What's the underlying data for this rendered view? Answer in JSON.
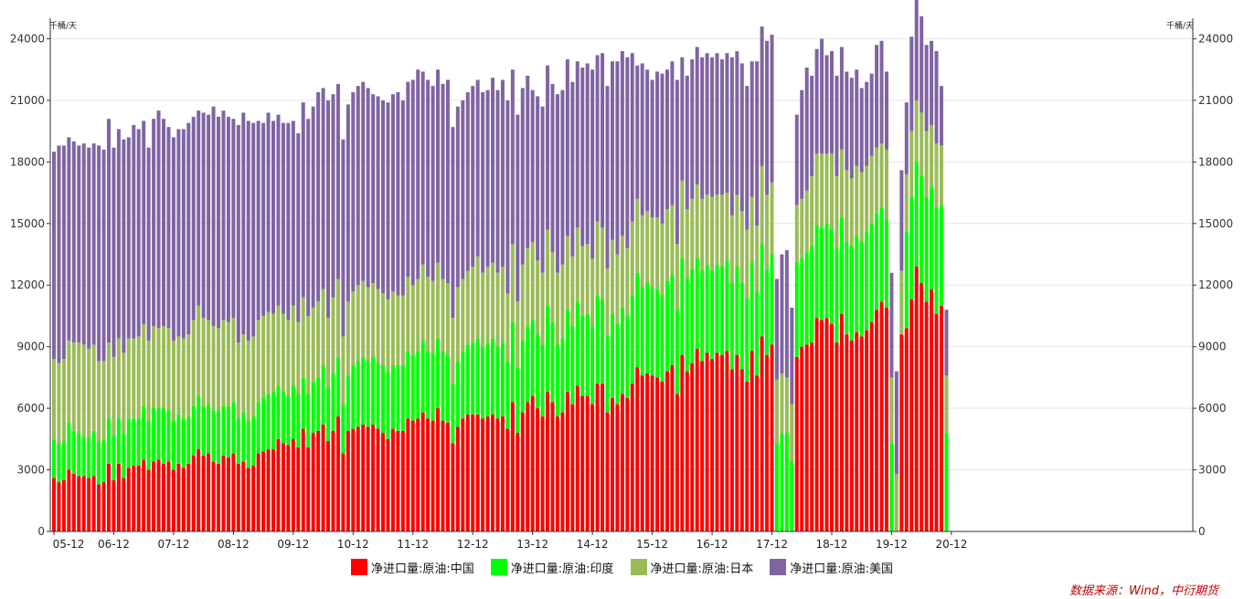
{
  "chart_data": {
    "type": "bar",
    "stacked": true,
    "title": "",
    "unit_left": "千桶/天",
    "unit_right": "千桶/天",
    "ylim": [
      0,
      25000
    ],
    "yticks": [
      0,
      3000,
      6000,
      9000,
      12000,
      15000,
      18000,
      21000,
      24000
    ],
    "xtick_labels": [
      "05-12",
      "06-12",
      "07-12",
      "08-12",
      "09-12",
      "10-12",
      "11-12",
      "12-12",
      "13-12",
      "14-12",
      "15-12",
      "16-12",
      "17-12",
      "18-12",
      "19-12",
      "20-12"
    ],
    "month_start": "2005-12",
    "legend_position": "bottom",
    "grid": true,
    "series": [
      {
        "name": "净进口量:原油:中国",
        "color": "#ff0000",
        "values": [
          2600,
          2400,
          2500,
          3000,
          2800,
          2700,
          2700,
          2600,
          2700,
          2300,
          2400,
          3300,
          2500,
          3300,
          2600,
          3100,
          3200,
          3200,
          3500,
          3000,
          3400,
          3500,
          3300,
          3400,
          3000,
          3300,
          3100,
          3300,
          3700,
          4000,
          3700,
          3800,
          3400,
          3300,
          3700,
          3600,
          3800,
          3300,
          3400,
          3100,
          3200,
          3800,
          3900,
          4000,
          4000,
          4500,
          4300,
          4200,
          4500,
          4100,
          5000,
          4100,
          4800,
          4900,
          5200,
          4400,
          4900,
          5600,
          3800,
          4900,
          5000,
          5100,
          5200,
          5100,
          5200,
          5000,
          4800,
          4500,
          5000,
          4900,
          4900,
          5500,
          5400,
          5500,
          5800,
          5500,
          5400,
          6000,
          5400,
          5300,
          4300,
          5100,
          5500,
          5700,
          5700,
          5700,
          5500,
          5600,
          5700,
          5500,
          5600,
          5000,
          6300,
          4800,
          5800,
          6300,
          6600,
          6000,
          5600,
          6800,
          6300,
          5600,
          5800,
          6800,
          6200,
          7100,
          6600,
          6600,
          6200,
          7200,
          7200,
          5800,
          6500,
          6200,
          6700,
          6500,
          7200,
          8000,
          7600,
          7700,
          7600,
          7500,
          7300,
          7800,
          8100,
          6700,
          8600,
          7800,
          8200,
          8900,
          8300,
          8700,
          8400,
          8700,
          8600,
          8800,
          7900,
          8600,
          7900,
          7300,
          8800,
          7600,
          9500,
          8600,
          9100,
          0,
          0,
          0,
          0,
          8500,
          9000,
          9100,
          9200,
          10400,
          10300,
          10400,
          10100,
          9200,
          10600,
          9600,
          9300,
          9700,
          9500,
          9800,
          10200,
          10800,
          11200,
          10900,
          0,
          0,
          9600,
          9900,
          11300,
          12900,
          12100,
          11200,
          11800,
          10600,
          11000,
          0
        ]
      },
      {
        "name": "净进口量:原油:印度",
        "color": "#00ff00",
        "values": [
          1900,
          1900,
          1900,
          2300,
          2100,
          2100,
          1900,
          2000,
          2200,
          2100,
          2100,
          2200,
          2200,
          2200,
          2200,
          2400,
          2300,
          2300,
          2600,
          2400,
          2600,
          2500,
          2700,
          2500,
          2400,
          2400,
          2400,
          2300,
          2400,
          2600,
          2400,
          2400,
          2500,
          2600,
          2400,
          2500,
          2500,
          2200,
          2400,
          2300,
          2400,
          2500,
          2600,
          2700,
          2800,
          2600,
          2500,
          2400,
          2600,
          2600,
          2500,
          2600,
          2500,
          2600,
          2900,
          2600,
          2800,
          2900,
          2400,
          2700,
          3100,
          3200,
          3300,
          3200,
          3300,
          3200,
          3300,
          3300,
          3100,
          3200,
          3200,
          3300,
          3200,
          3300,
          3500,
          3300,
          3300,
          3400,
          3400,
          3300,
          2900,
          3200,
          3300,
          3400,
          3500,
          3700,
          3500,
          3600,
          3700,
          3500,
          3600,
          3300,
          3900,
          3200,
          3500,
          3700,
          3700,
          3600,
          3500,
          4200,
          3900,
          3500,
          3600,
          4000,
          3800,
          4100,
          3900,
          4000,
          3800,
          4300,
          4100,
          3700,
          4100,
          3900,
          4200,
          4000,
          4300,
          4600,
          4300,
          4400,
          4300,
          4300,
          4200,
          4400,
          4400,
          4100,
          4700,
          4500,
          4600,
          4400,
          4400,
          4300,
          4300,
          4300,
          4300,
          4400,
          4200,
          4300,
          4200,
          4100,
          4300,
          4100,
          4500,
          4200,
          4400,
          4300,
          4800,
          4800,
          3400,
          4600,
          4300,
          4500,
          4700,
          4500,
          4500,
          4600,
          4600,
          4600,
          4700,
          4500,
          4600,
          4700,
          4600,
          4800,
          4800,
          4700,
          4600,
          4300,
          4300,
          0,
          0,
          4700,
          5000,
          5100,
          5200,
          5100,
          5000,
          5200,
          4900,
          4800,
          4500,
          2800
        ]
      },
      {
        "name": "净进口量:原油:日本",
        "color": "#9bbb59",
        "values": [
          3900,
          3900,
          4000,
          4000,
          4300,
          4400,
          4500,
          4300,
          4200,
          3900,
          3800,
          3700,
          3800,
          3900,
          3900,
          3900,
          3900,
          4000,
          4000,
          3900,
          4000,
          3900,
          4000,
          4000,
          3900,
          3800,
          3900,
          4000,
          4200,
          4400,
          4300,
          4100,
          4100,
          4000,
          4200,
          4100,
          4100,
          3700,
          3800,
          3900,
          3900,
          4000,
          4000,
          4000,
          3800,
          3900,
          3800,
          3700,
          3900,
          3500,
          3900,
          3800,
          3600,
          3700,
          3700,
          3400,
          3700,
          3800,
          3300,
          3600,
          3600,
          3700,
          3700,
          3600,
          3600,
          3600,
          3500,
          3500,
          3600,
          3400,
          3400,
          3600,
          3400,
          3500,
          3700,
          3600,
          3500,
          3700,
          3500,
          3500,
          3200,
          3600,
          3500,
          3600,
          3700,
          4000,
          3600,
          3700,
          3700,
          3600,
          3700,
          3300,
          3800,
          3200,
          3700,
          3800,
          3800,
          3600,
          3500,
          3700,
          3400,
          3500,
          3600,
          3600,
          3400,
          3600,
          3400,
          3400,
          3300,
          3600,
          3500,
          3300,
          3600,
          3400,
          3500,
          3300,
          3600,
          3600,
          3500,
          3500,
          3400,
          3500,
          3500,
          3500,
          3400,
          3200,
          3800,
          3400,
          3400,
          3600,
          3500,
          3400,
          3600,
          3400,
          3500,
          3300,
          3300,
          3500,
          3500,
          3300,
          3200,
          3200,
          3800,
          3600,
          3500,
          3100,
          2900,
          2700,
          2800,
          2800,
          2900,
          3000,
          3400,
          3500,
          3600,
          3400,
          3700,
          3500,
          3300,
          3500,
          3300,
          3400,
          3400,
          3200,
          3300,
          3200,
          3100,
          3400,
          3200,
          2800,
          3100,
          2800,
          3200,
          3000,
          3100,
          3200,
          3000,
          3100,
          2900,
          2800,
          2700,
          0
        ]
      },
      {
        "name": "净进口量:原油:美国",
        "color": "#8064a2",
        "values": [
          10100,
          10600,
          10400,
          9900,
          9800,
          9600,
          9800,
          9800,
          9800,
          10500,
          10300,
          10900,
          10200,
          10200,
          10400,
          9800,
          10400,
          10100,
          9900,
          9400,
          10100,
          10600,
          10100,
          9800,
          9900,
          10100,
          10200,
          10300,
          9900,
          9500,
          10000,
          10000,
          10700,
          10300,
          10200,
          10000,
          9700,
          10600,
          10800,
          10700,
          10400,
          9700,
          9400,
          9700,
          9400,
          9300,
          9300,
          9600,
          9000,
          9200,
          9500,
          9600,
          9800,
          10200,
          9800,
          10600,
          9900,
          9500,
          9600,
          9600,
          9700,
          9700,
          9700,
          9700,
          9200,
          9400,
          9400,
          9600,
          9600,
          9900,
          9500,
          9500,
          10000,
          10200,
          9400,
          9600,
          9500,
          9400,
          9500,
          9900,
          9300,
          8800,
          8700,
          8700,
          8800,
          8600,
          8800,
          8600,
          9000,
          8900,
          9100,
          9400,
          8500,
          9100,
          8600,
          8400,
          7400,
          8000,
          8100,
          8000,
          8200,
          8700,
          8500,
          8600,
          8500,
          8100,
          8700,
          8800,
          9200,
          8100,
          8500,
          8900,
          8700,
          9400,
          9000,
          9300,
          8200,
          6500,
          7400,
          6900,
          6700,
          7100,
          7300,
          6800,
          7000,
          8000,
          6000,
          6500,
          6800,
          6700,
          6900,
          6900,
          6800,
          6900,
          6600,
          6800,
          7700,
          7000,
          7200,
          7000,
          6600,
          8000,
          6800,
          7500,
          7200,
          4900,
          5800,
          6200,
          4700,
          4400,
          5300,
          6000,
          4900,
          5100,
          5600,
          4800,
          5000,
          4900,
          5000,
          4800,
          4900,
          4700,
          4100,
          4100,
          4000,
          5000,
          5000,
          3800,
          5100,
          5000,
          4900,
          3500,
          4600,
          5100,
          4700,
          4200,
          4100,
          4500,
          2900,
          3200,
          2600,
          0
        ]
      }
    ]
  },
  "source_label": "数据来源：Wind，中衍期货"
}
